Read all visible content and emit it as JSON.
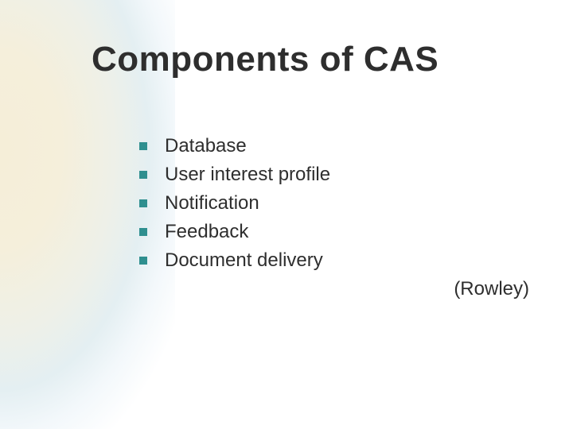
{
  "slide": {
    "title": "Components of CAS",
    "bullets": [
      "Database",
      "User interest profile",
      "Notification",
      "Feedback",
      "Document delivery"
    ],
    "attribution": "(Rowley)"
  },
  "style": {
    "title_fontsize": 44,
    "title_color": "#2e2e2e",
    "bullet_fontsize": 24,
    "bullet_color": "#2e2e2e",
    "bullet_marker_color": "#2f8f8f",
    "bullet_marker_size": 10,
    "background_color": "#ffffff",
    "gradient_colors": [
      "#f5eed8",
      "#eef0e8",
      "#e4eff2",
      "#ffffff"
    ]
  }
}
